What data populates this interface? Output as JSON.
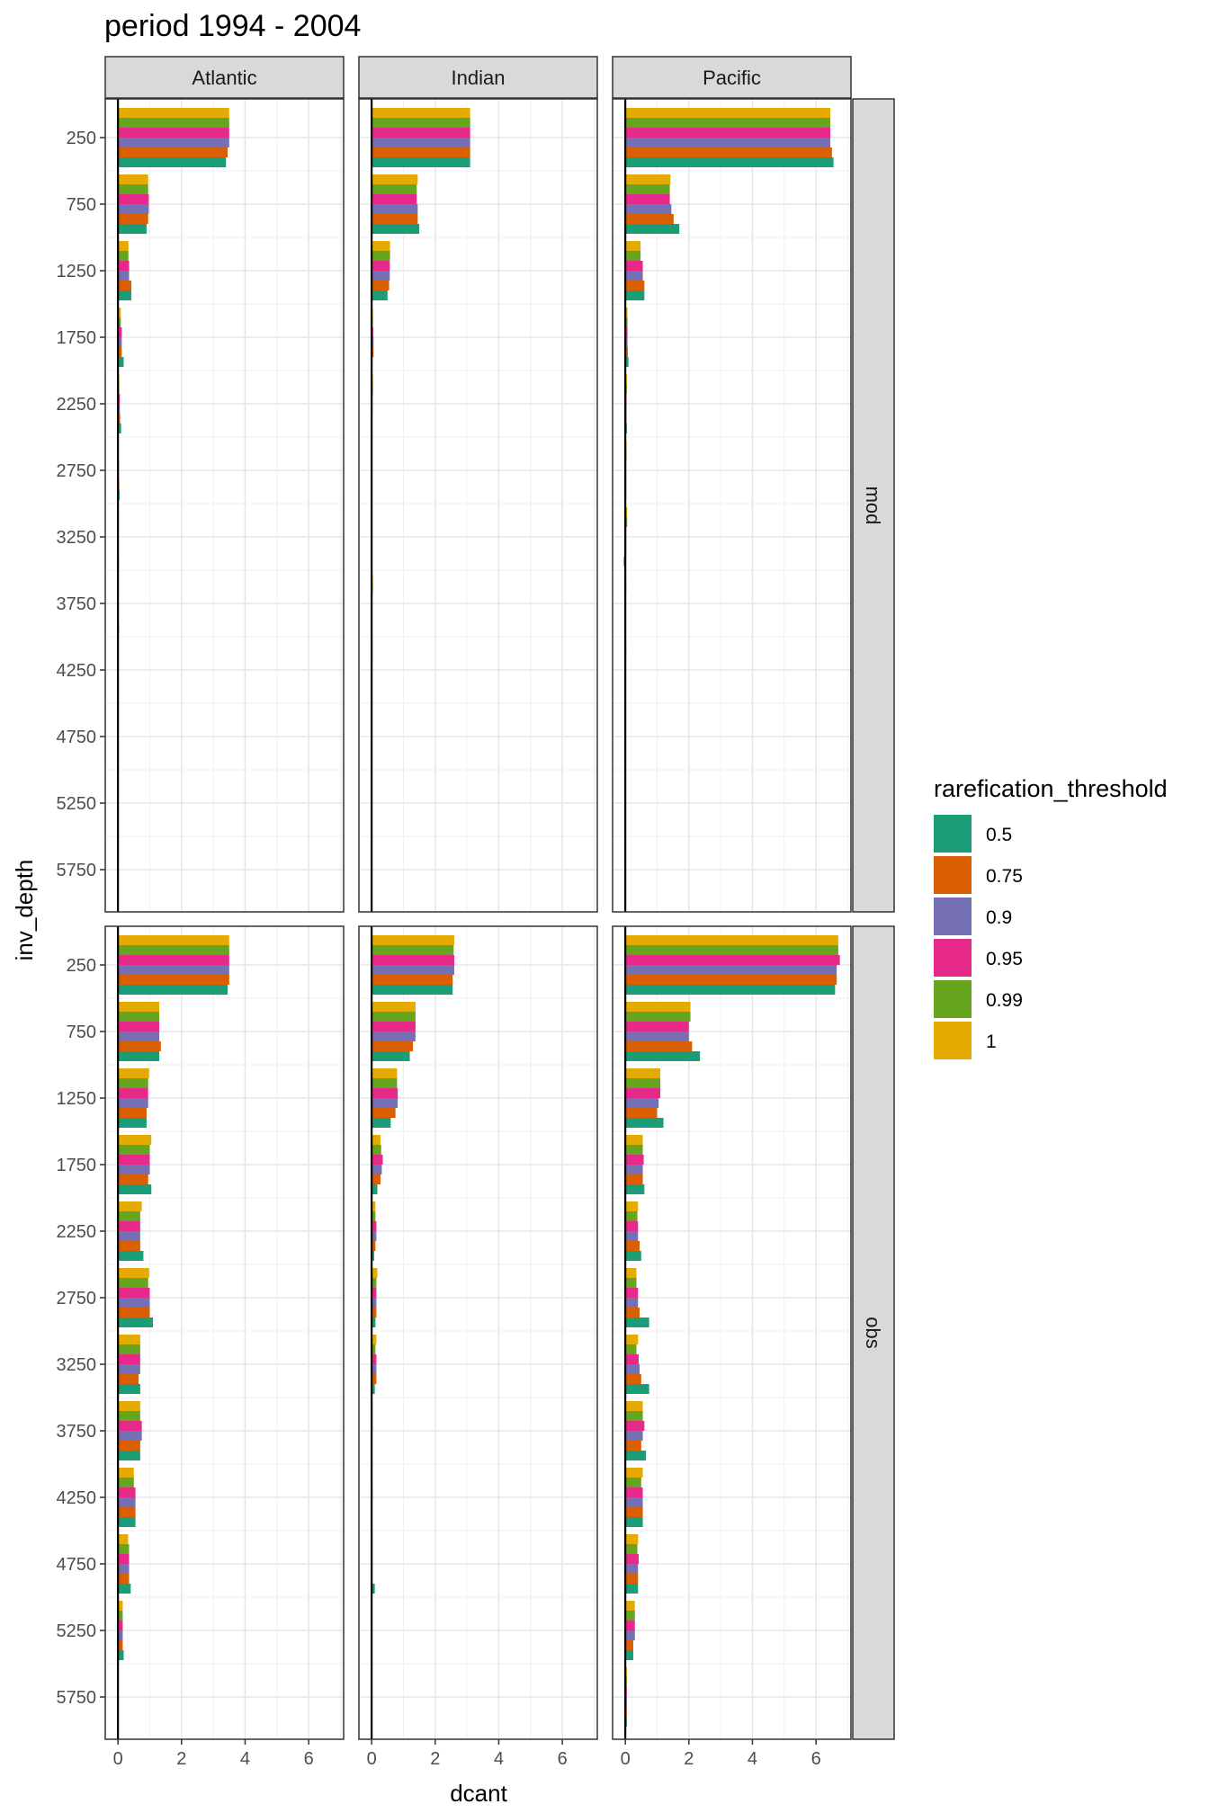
{
  "chart_data": {
    "type": "bar",
    "orientation": "horizontal",
    "title": "period 1994 - 2004",
    "xlabel": "dcant",
    "ylabel": "inv_depth",
    "xlim": [
      -0.4,
      7.1
    ],
    "x_ticks": [
      0,
      2,
      4,
      6
    ],
    "y_ticks": [
      250,
      750,
      1250,
      1750,
      2250,
      2750,
      3250,
      3750,
      4250,
      4750,
      5250,
      5750
    ],
    "categories": [
      250,
      750,
      1250,
      1750,
      2250,
      2750,
      3250,
      3750,
      4250,
      4750,
      5250,
      5750
    ],
    "grid": true,
    "facet_cols": [
      "Atlantic",
      "Indian",
      "Pacific"
    ],
    "facet_rows": [
      "mod",
      "obs"
    ],
    "legend": {
      "title": "rarefication_threshold",
      "position": "right",
      "entries": [
        {
          "label": "0.5",
          "color": "#1B9E77"
        },
        {
          "label": "0.75",
          "color": "#D95F02"
        },
        {
          "label": "0.9",
          "color": "#7570B3"
        },
        {
          "label": "0.95",
          "color": "#E7298A"
        },
        {
          "label": "0.99",
          "color": "#66A61E"
        },
        {
          "label": "1",
          "color": "#E6AB02"
        }
      ]
    },
    "panels": [
      {
        "row": "mod",
        "col": "Atlantic",
        "series": [
          {
            "name": "0.5",
            "values": [
              3.4,
              0.9,
              0.42,
              0.18,
              0.1,
              0.05,
              0.03,
              0.03,
              0.02,
              0.01,
              0,
              0
            ]
          },
          {
            "name": "0.75",
            "values": [
              3.45,
              0.95,
              0.42,
              0.12,
              0.07,
              0.04,
              0.02,
              0.02,
              0.01,
              0.01,
              0,
              0
            ]
          },
          {
            "name": "0.9",
            "values": [
              3.5,
              0.97,
              0.35,
              0.12,
              0.06,
              0.03,
              0.02,
              0.02,
              0.01,
              0.01,
              0,
              0
            ]
          },
          {
            "name": "0.95",
            "values": [
              3.5,
              0.97,
              0.35,
              0.12,
              0.06,
              0.03,
              0.02,
              0.02,
              0.01,
              0.01,
              0,
              0
            ]
          },
          {
            "name": "0.99",
            "values": [
              3.5,
              0.95,
              0.33,
              0.09,
              0.04,
              0.02,
              0.02,
              0.02,
              0.01,
              0.01,
              0,
              0
            ]
          },
          {
            "name": "1",
            "values": [
              3.5,
              0.95,
              0.33,
              0.09,
              0.04,
              0.02,
              0.02,
              0.02,
              0.01,
              0.01,
              0,
              0
            ]
          }
        ]
      },
      {
        "row": "mod",
        "col": "Indian",
        "series": [
          {
            "name": "0.5",
            "values": [
              3.1,
              1.5,
              0.5,
              0.03,
              0.02,
              0.02,
              0.01,
              0.02,
              0.02,
              0.01,
              0,
              0
            ]
          },
          {
            "name": "0.75",
            "values": [
              3.1,
              1.45,
              0.55,
              0.06,
              0.02,
              0.02,
              0.01,
              0.02,
              0.02,
              0.01,
              0,
              0
            ]
          },
          {
            "name": "0.9",
            "values": [
              3.1,
              1.45,
              0.57,
              0.06,
              0.03,
              0.02,
              0.01,
              0.02,
              0.02,
              0.01,
              0,
              0
            ]
          },
          {
            "name": "0.95",
            "values": [
              3.1,
              1.42,
              0.57,
              0.05,
              0.03,
              0.02,
              0.01,
              0.02,
              0.02,
              0.01,
              0,
              0
            ]
          },
          {
            "name": "0.99",
            "values": [
              3.1,
              1.42,
              0.58,
              0.04,
              0.04,
              0.02,
              0.01,
              0.04,
              0.03,
              0.01,
              0,
              0
            ]
          },
          {
            "name": "1",
            "values": [
              3.1,
              1.45,
              0.58,
              0.04,
              0.04,
              0.02,
              0.01,
              0.04,
              0.03,
              0.01,
              0,
              0
            ]
          }
        ]
      },
      {
        "row": "mod",
        "col": "Pacific",
        "series": [
          {
            "name": "0.5",
            "values": [
              6.55,
              1.7,
              0.6,
              0.1,
              0.05,
              0.03,
              -0.05,
              0.02,
              0.02,
              0.01,
              0.02,
              0
            ]
          },
          {
            "name": "0.75",
            "values": [
              6.5,
              1.52,
              0.6,
              0.08,
              0.04,
              0.03,
              0.03,
              0.02,
              0.02,
              0.01,
              0.01,
              0
            ]
          },
          {
            "name": "0.9",
            "values": [
              6.45,
              1.45,
              0.55,
              0.07,
              0.04,
              0.03,
              0.03,
              0.02,
              0.02,
              0.01,
              0.01,
              0
            ]
          },
          {
            "name": "0.95",
            "values": [
              6.45,
              1.4,
              0.55,
              0.07,
              0.04,
              0.03,
              0.03,
              0.02,
              0.02,
              0.01,
              0.01,
              0
            ]
          },
          {
            "name": "0.99",
            "values": [
              6.45,
              1.4,
              0.48,
              0.07,
              0.05,
              0.04,
              0.06,
              0.03,
              0.03,
              0.02,
              0.01,
              0
            ]
          },
          {
            "name": "1",
            "values": [
              6.45,
              1.42,
              0.48,
              0.07,
              0.05,
              0.04,
              0.06,
              0.03,
              0.03,
              0.02,
              0.01,
              0
            ]
          }
        ]
      },
      {
        "row": "obs",
        "col": "Atlantic",
        "series": [
          {
            "name": "0.5",
            "values": [
              3.45,
              1.3,
              0.9,
              1.05,
              0.8,
              1.1,
              0.7,
              0.7,
              0.55,
              0.4,
              0.18,
              0
            ]
          },
          {
            "name": "0.75",
            "values": [
              3.5,
              1.35,
              0.9,
              0.95,
              0.7,
              1.0,
              0.65,
              0.7,
              0.55,
              0.35,
              0.15,
              0
            ]
          },
          {
            "name": "0.9",
            "values": [
              3.5,
              1.3,
              0.95,
              1.0,
              0.7,
              1.0,
              0.7,
              0.75,
              0.55,
              0.35,
              0.15,
              0
            ]
          },
          {
            "name": "0.95",
            "values": [
              3.5,
              1.3,
              0.95,
              1.0,
              0.7,
              1.0,
              0.7,
              0.75,
              0.55,
              0.35,
              0.15,
              0
            ]
          },
          {
            "name": "0.99",
            "values": [
              3.5,
              1.3,
              0.95,
              1.0,
              0.7,
              0.95,
              0.7,
              0.7,
              0.5,
              0.35,
              0.15,
              0
            ]
          },
          {
            "name": "1",
            "values": [
              3.5,
              1.3,
              0.98,
              1.05,
              0.75,
              0.98,
              0.7,
              0.7,
              0.5,
              0.32,
              0.15,
              0
            ]
          }
        ]
      },
      {
        "row": "obs",
        "col": "Indian",
        "series": [
          {
            "name": "0.5",
            "values": [
              2.55,
              1.2,
              0.6,
              0.18,
              0.08,
              0.12,
              0.1,
              0.02,
              0.02,
              0.1,
              0.01,
              0
            ]
          },
          {
            "name": "0.75",
            "values": [
              2.55,
              1.3,
              0.75,
              0.28,
              0.12,
              0.15,
              0.15,
              0.02,
              0.02,
              0.03,
              0.01,
              0
            ]
          },
          {
            "name": "0.9",
            "values": [
              2.6,
              1.38,
              0.82,
              0.32,
              0.15,
              0.15,
              0.15,
              0.02,
              0.02,
              0.03,
              0.01,
              0
            ]
          },
          {
            "name": "0.95",
            "values": [
              2.6,
              1.38,
              0.82,
              0.35,
              0.15,
              0.15,
              0.15,
              0.03,
              0.03,
              0.03,
              0.01,
              0
            ]
          },
          {
            "name": "0.99",
            "values": [
              2.58,
              1.38,
              0.8,
              0.3,
              0.12,
              0.15,
              0.12,
              0.03,
              0.02,
              0.03,
              0.01,
              0
            ]
          },
          {
            "name": "1",
            "values": [
              2.6,
              1.38,
              0.8,
              0.28,
              0.12,
              0.18,
              0.15,
              0.03,
              0.02,
              0.03,
              0.01,
              0
            ]
          }
        ]
      },
      {
        "row": "obs",
        "col": "Pacific",
        "series": [
          {
            "name": "0.5",
            "values": [
              6.6,
              2.35,
              1.2,
              0.6,
              0.5,
              0.75,
              0.75,
              0.65,
              0.55,
              0.4,
              0.25,
              0.05
            ]
          },
          {
            "name": "0.75",
            "values": [
              6.65,
              2.1,
              1.0,
              0.55,
              0.45,
              0.45,
              0.5,
              0.5,
              0.55,
              0.4,
              0.25,
              0.05
            ]
          },
          {
            "name": "0.9",
            "values": [
              6.65,
              2.0,
              1.05,
              0.55,
              0.4,
              0.4,
              0.45,
              0.55,
              0.55,
              0.4,
              0.3,
              0.05
            ]
          },
          {
            "name": "0.95",
            "values": [
              6.75,
              2.0,
              1.1,
              0.58,
              0.4,
              0.4,
              0.42,
              0.6,
              0.55,
              0.42,
              0.3,
              0.05
            ]
          },
          {
            "name": "0.99",
            "values": [
              6.7,
              2.05,
              1.1,
              0.55,
              0.38,
              0.35,
              0.35,
              0.55,
              0.5,
              0.38,
              0.3,
              0.05
            ]
          },
          {
            "name": "1",
            "values": [
              6.7,
              2.05,
              1.1,
              0.55,
              0.4,
              0.35,
              0.4,
              0.55,
              0.55,
              0.4,
              0.3,
              0.05
            ]
          }
        ]
      }
    ]
  }
}
